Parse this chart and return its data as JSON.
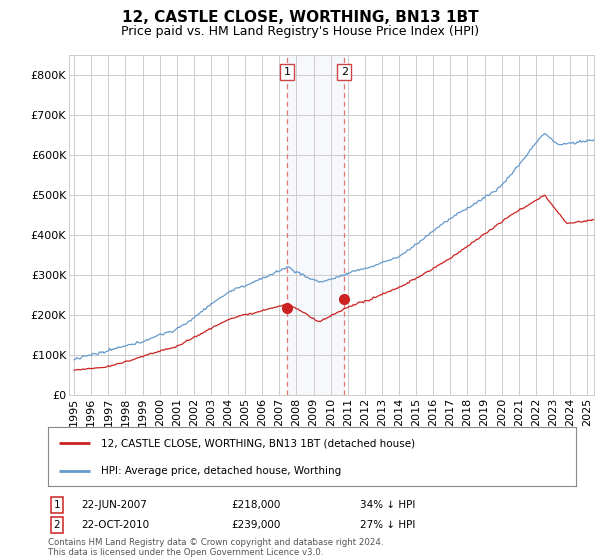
{
  "title": "12, CASTLE CLOSE, WORTHING, BN13 1BT",
  "subtitle": "Price paid vs. HM Land Registry's House Price Index (HPI)",
  "ylim": [
    0,
    850000
  ],
  "yticks": [
    0,
    100000,
    200000,
    300000,
    400000,
    500000,
    600000,
    700000,
    800000
  ],
  "ytick_labels": [
    "£0",
    "£100K",
    "£200K",
    "£300K",
    "£400K",
    "£500K",
    "£600K",
    "£700K",
    "£800K"
  ],
  "hpi_color": "#6699cc",
  "price_color": "#cc2222",
  "transaction1_date": "22-JUN-2007",
  "transaction1_price": 218000,
  "transaction1_price_str": "£218,000",
  "transaction1_pct": "34% ↓ HPI",
  "transaction1_label": "1",
  "transaction1_year": 2007.458,
  "transaction2_date": "22-OCT-2010",
  "transaction2_price": 239000,
  "transaction2_price_str": "£239,000",
  "transaction2_pct": "27% ↓ HPI",
  "transaction2_label": "2",
  "transaction2_year": 2010.792,
  "legend_label1": "12, CASTLE CLOSE, WORTHING, BN13 1BT (detached house)",
  "legend_label2": "HPI: Average price, detached house, Worthing",
  "footnote1": "Contains HM Land Registry data © Crown copyright and database right 2024.",
  "footnote2": "This data is licensed under the Open Government Licence v3.0.",
  "background_color": "#ffffff",
  "grid_color": "#cccccc",
  "title_fontsize": 11,
  "subtitle_fontsize": 9,
  "tick_fontsize": 8,
  "x_start_year": 1995,
  "x_end_year": 2025
}
